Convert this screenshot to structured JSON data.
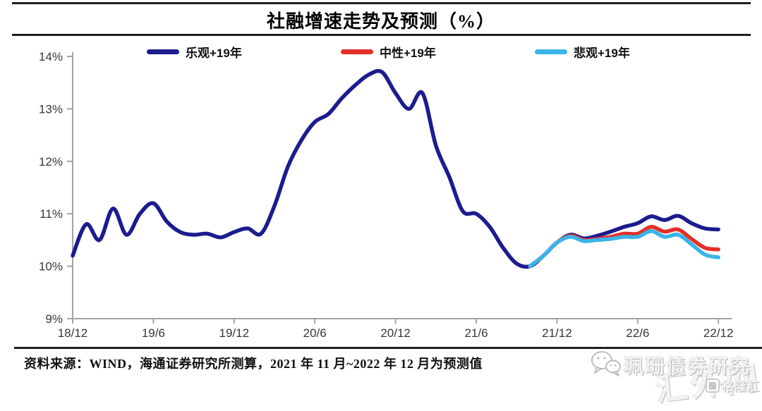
{
  "title": "社融增速走势及预测（%）",
  "legend": [
    {
      "label": "乐观+19年",
      "color": "#1c1c8f"
    },
    {
      "label": "中性+19年",
      "color": "#e62e28"
    },
    {
      "label": "悲观+19年",
      "color": "#3ab4e8"
    }
  ],
  "chart_data": {
    "type": "line",
    "title": "社融增速走势及预测（%）",
    "x_start": "2018/12",
    "x_end": "2022/12",
    "x_frequency": "monthly",
    "x_tick_labels": [
      "18/12",
      "19/6",
      "19/12",
      "20/6",
      "20/12",
      "21/6",
      "21/12",
      "22/6",
      "22/12"
    ],
    "y_tick_labels": [
      "14%",
      "13%",
      "12%",
      "11%",
      "10%",
      "9%"
    ],
    "ylim": [
      9,
      14
    ],
    "grid": false,
    "legend_position": "top",
    "forecast_note": "2021/11 - 2022/12 are forecast values",
    "series": [
      {
        "name": "乐观+19年",
        "color": "#1c1c8f",
        "start_month_index": 0,
        "values": [
          10.2,
          10.8,
          10.5,
          11.1,
          10.6,
          11.0,
          11.2,
          10.85,
          10.65,
          10.6,
          10.62,
          10.55,
          10.65,
          10.72,
          10.62,
          11.15,
          11.9,
          12.4,
          12.75,
          12.9,
          13.2,
          13.45,
          13.65,
          13.7,
          13.3,
          13.0,
          13.3,
          12.3,
          11.7,
          11.05,
          11.0,
          10.75,
          10.35,
          10.05,
          10.0,
          10.2,
          10.45,
          10.6,
          10.53,
          10.58,
          10.66,
          10.75,
          10.82,
          10.95,
          10.88,
          10.96,
          10.82,
          10.72,
          10.7
        ]
      },
      {
        "name": "中性+19年",
        "color": "#e62e28",
        "start_month_index": 34,
        "values": [
          10.0,
          10.2,
          10.45,
          10.58,
          10.5,
          10.52,
          10.56,
          10.62,
          10.62,
          10.75,
          10.66,
          10.7,
          10.52,
          10.35,
          10.32
        ]
      },
      {
        "name": "悲观+19年",
        "color": "#3ab4e8",
        "start_month_index": 34,
        "values": [
          10.0,
          10.2,
          10.45,
          10.56,
          10.48,
          10.5,
          10.52,
          10.56,
          10.56,
          10.67,
          10.56,
          10.6,
          10.42,
          10.22,
          10.17
        ]
      }
    ]
  },
  "source": "资料来源：WIND，海通证券研究所测算，2021 年 11 月~2022 年 12 月为预测值",
  "watermark": {
    "account": "珮珊债券研究",
    "site": "汇外网",
    "logo": "格隆汇"
  }
}
